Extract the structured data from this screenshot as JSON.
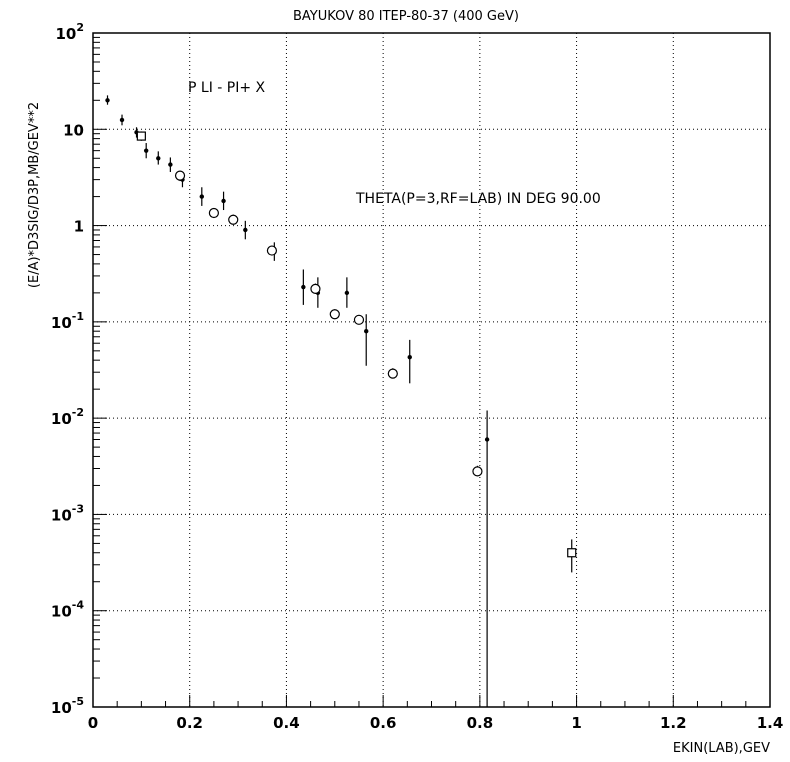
{
  "chart_data": {
    "type": "scatter",
    "title": "BAYUKOV 80   ITEP-80-37 (400 GeV)",
    "xlabel": "EKIN(LAB),GEV",
    "ylabel": "(E/A)*D3SIG/D3P,MB/GEV**2",
    "xlim": [
      0,
      1.4
    ],
    "ylim": [
      1e-05,
      100
    ],
    "yscale": "log",
    "grid": true,
    "x_ticks": [
      "0",
      "0.2",
      "0.4",
      "0.6",
      "0.8",
      "1",
      "1.2",
      "1.4"
    ],
    "y_ticks": [
      {
        "base": "10",
        "exp": "-5"
      },
      {
        "base": "10",
        "exp": "-4"
      },
      {
        "base": "10",
        "exp": "-3"
      },
      {
        "base": "10",
        "exp": "-2"
      },
      {
        "base": "10",
        "exp": "-1"
      },
      {
        "base": "1",
        "exp": ""
      },
      {
        "base": "10",
        "exp": ""
      },
      {
        "base": "10",
        "exp": "2"
      }
    ],
    "annotations": [
      "P LI - PI+ X",
      "THETA(P=3,RF=LAB) IN DEG   90.00"
    ],
    "series": [
      {
        "marker": "dot",
        "points": [
          {
            "x": 0.03,
            "y": 20,
            "ylo": 18,
            "yhi": 22.5
          },
          {
            "x": 0.06,
            "y": 12.5,
            "ylo": 11,
            "yhi": 14.2
          },
          {
            "x": 0.09,
            "y": 9.3,
            "ylo": 8.2,
            "yhi": 10.5
          },
          {
            "x": 0.11,
            "y": 6.0,
            "ylo": 5.0,
            "yhi": 7.2
          },
          {
            "x": 0.135,
            "y": 5.0,
            "ylo": 4.3,
            "yhi": 5.9
          },
          {
            "x": 0.16,
            "y": 4.3,
            "ylo": 3.6,
            "yhi": 5.1
          },
          {
            "x": 0.185,
            "y": 3.0,
            "ylo": 2.5,
            "yhi": 3.6
          },
          {
            "x": 0.225,
            "y": 2.0,
            "ylo": 1.6,
            "yhi": 2.5
          },
          {
            "x": 0.27,
            "y": 1.8,
            "ylo": 1.45,
            "yhi": 2.25
          },
          {
            "x": 0.315,
            "y": 0.9,
            "ylo": 0.72,
            "yhi": 1.12
          },
          {
            "x": 0.375,
            "y": 0.53,
            "ylo": 0.43,
            "yhi": 0.67
          },
          {
            "x": 0.435,
            "y": 0.23,
            "ylo": 0.15,
            "yhi": 0.35
          },
          {
            "x": 0.465,
            "y": 0.2,
            "ylo": 0.14,
            "yhi": 0.29
          },
          {
            "x": 0.525,
            "y": 0.2,
            "ylo": 0.14,
            "yhi": 0.29
          },
          {
            "x": 0.565,
            "y": 0.08,
            "ylo": 0.035,
            "yhi": 0.12
          },
          {
            "x": 0.655,
            "y": 0.043,
            "ylo": 0.023,
            "yhi": 0.065
          },
          {
            "x": 0.815,
            "y": 0.006,
            "ylo": 1e-05,
            "yhi": 0.012
          }
        ]
      },
      {
        "marker": "open-circle",
        "points": [
          {
            "x": 0.18,
            "y": 3.3,
            "ylo": 2.9,
            "yhi": 3.7
          },
          {
            "x": 0.25,
            "y": 1.35,
            "ylo": 1.2,
            "yhi": 1.5
          },
          {
            "x": 0.29,
            "y": 1.15,
            "ylo": 1.02,
            "yhi": 1.3
          },
          {
            "x": 0.37,
            "y": 0.55,
            "ylo": 0.49,
            "yhi": 0.62
          },
          {
            "x": 0.46,
            "y": 0.22,
            "ylo": 0.195,
            "yhi": 0.25
          },
          {
            "x": 0.5,
            "y": 0.12,
            "ylo": 0.107,
            "yhi": 0.135
          },
          {
            "x": 0.55,
            "y": 0.105,
            "ylo": 0.094,
            "yhi": 0.118
          },
          {
            "x": 0.62,
            "y": 0.029,
            "ylo": 0.026,
            "yhi": 0.033
          },
          {
            "x": 0.795,
            "y": 0.0028,
            "ylo": 0.0025,
            "yhi": 0.0032
          }
        ]
      },
      {
        "marker": "open-square",
        "points": [
          {
            "x": 0.1,
            "y": 8.5,
            "ylo": 7.6,
            "yhi": 9.5
          },
          {
            "x": 0.99,
            "y": 0.0004,
            "ylo": 0.00025,
            "yhi": 0.00055
          }
        ]
      }
    ]
  }
}
